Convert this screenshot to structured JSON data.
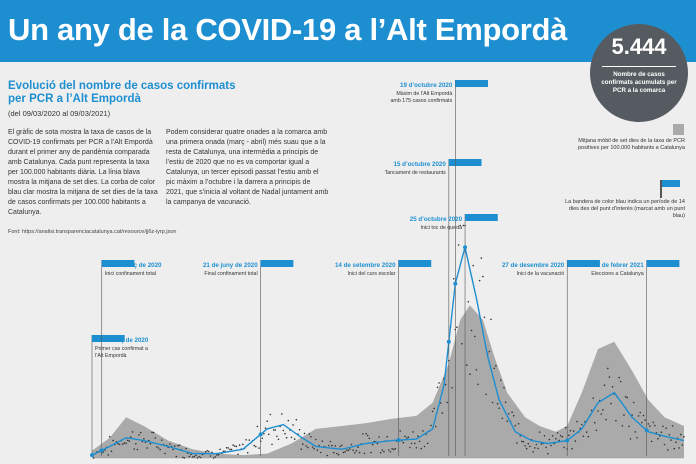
{
  "header": {
    "title": "Un any de la COVID-19 a l’Alt Empordà",
    "total_cases": "5.444",
    "total_cases_caption": "Nombre de casos confirmats acumulats per PCR a la comarca"
  },
  "intro": {
    "heading": "Evolució del nombre de casos confirmats per PCR a l’Alt Empordà",
    "date_range": "(del 09/03/2020 al 09/03/2021)",
    "paragraph_1": "El gràfic de sota mostra la taxa de casos de la COVID-19 confirmats per PCR a l’Alt Empordà durant el primer any de pandèmia comparada amb Catalunya. Cada punt representa la taxa per 100.000 habitants diària. La línia blava mostra la mitjana de set dies. La corba de color blau clar mostra la mitjana de set dies de la taxa de casos confirmats per 100.000 habitants a Catalunya.",
    "paragraph_2": "Podem considerar quatre onades a la comarca amb una primera onada (març - abril) més suau que a la resta de Catalunya, una intermèdia a principis de l’estiu de 2020 que no es va comportar igual a Catalunya, un tercer episodi passat l’estiu amb el pic màxim a l’octubre i la darrera a principis de 2021, que s’inicia al voltant de Nadal juntament amb la campanya de vacunació.",
    "source": "Font: https://analisi.transparenciacatalunya.cat/resource/jj6z-iyrp.json"
  },
  "legend": {
    "catalonia": "Mitjana mòbil de set dies de la taxa de PCR positives per 100.000 habitants a Catalunya",
    "flag": "La bandera de color blau indica un període de 14 dies des del punt d’interès (marcat amb un punt blau)"
  },
  "colors": {
    "header_bg": "#1d8fd1",
    "local_line": "#1d8fd1",
    "catalonia_area": "#aaaaaa",
    "points": "#333333",
    "badge": "#555b60"
  },
  "chart_data": {
    "type": "area",
    "x_range": [
      "2020-03-09",
      "2021-03-09"
    ],
    "series": [
      {
        "name": "Mitjana mòbil de set dies de la taxa de PCR positives per 100.000 habitants a Catalunya",
        "style": "area",
        "x": [
          "2020-03-09",
          "2020-03-20",
          "2020-03-30",
          "2020-04-10",
          "2020-04-25",
          "2020-05-10",
          "2020-05-25",
          "2020-06-10",
          "2020-06-25",
          "2020-07-10",
          "2020-07-25",
          "2020-08-10",
          "2020-08-25",
          "2020-09-10",
          "2020-09-25",
          "2020-10-05",
          "2020-10-15",
          "2020-10-22",
          "2020-10-28",
          "2020-11-05",
          "2020-11-12",
          "2020-11-20",
          "2020-12-01",
          "2020-12-10",
          "2020-12-20",
          "2020-12-27",
          "2021-01-05",
          "2021-01-15",
          "2021-01-25",
          "2021-02-05",
          "2021-02-15",
          "2021-02-25",
          "2021-03-09"
        ],
        "values": [
          5,
          14,
          28,
          22,
          12,
          6,
          3,
          2,
          3,
          10,
          20,
          22,
          24,
          27,
          29,
          38,
          65,
          95,
          105,
          95,
          70,
          45,
          28,
          22,
          18,
          22,
          45,
          75,
          80,
          60,
          40,
          28,
          22
        ]
      },
      {
        "name": "",
        "style": "line",
        "x": [
          "2020-03-09",
          "2020-03-20",
          "2020-03-30",
          "2020-04-10",
          "2020-04-25",
          "2020-05-10",
          "2020-05-25",
          "2020-06-10",
          "2020-06-25",
          "2020-07-05",
          "2020-07-15",
          "2020-07-25",
          "2020-08-10",
          "2020-08-25",
          "2020-09-10",
          "2020-09-25",
          "2020-10-05",
          "2020-10-12",
          "2020-10-19",
          "2020-10-25",
          "2020-11-01",
          "2020-11-08",
          "2020-11-15",
          "2020-11-25",
          "2020-12-05",
          "2020-12-15",
          "2020-12-27",
          "2021-01-05",
          "2021-01-15",
          "2021-01-25",
          "2021-02-05",
          "2021-02-15",
          "2021-02-25",
          "2021-03-09"
        ],
        "values": [
          2,
          8,
          14,
          12,
          8,
          3,
          3,
          6,
          20,
          23,
          15,
          8,
          6,
          10,
          12,
          13,
          20,
          50,
          120,
          145,
          110,
          70,
          40,
          18,
          12,
          10,
          12,
          20,
          38,
          45,
          28,
          18,
          15,
          12
        ]
      }
    ],
    "annotations": [
      {
        "date": "2020-03-09",
        "label": "9 de març de 2020",
        "text": "Primer cas confirmat a l’Alt Empordà"
      },
      {
        "date": "2020-03-15",
        "label": "15 de març de 2020",
        "text": "Inici confinament total"
      },
      {
        "date": "2020-06-21",
        "label": "21 de juny de 2020",
        "text": "Final confinament total"
      },
      {
        "date": "2020-09-14",
        "label": "14 de setembre 2020",
        "text": "Inici del curs escolar"
      },
      {
        "date": "2020-10-15",
        "label": "15 d’octubre 2020",
        "text": "Tancament de restaurants"
      },
      {
        "date": "2020-10-19",
        "label": "19 d’octubre 2020",
        "text": "Màxim de l’Alt Empordà amb 175 casos confirmats"
      },
      {
        "date": "2020-10-25",
        "label": "25 d’octubre 2020",
        "text": "Inici toc de queda"
      },
      {
        "date": "2020-12-27",
        "label": "27 de desembre 2020",
        "text": "Inici de la vacunació"
      },
      {
        "date": "2021-02-14",
        "label": "14 de febrer 2021",
        "text": "Eleccions a Catalunya"
      }
    ]
  }
}
